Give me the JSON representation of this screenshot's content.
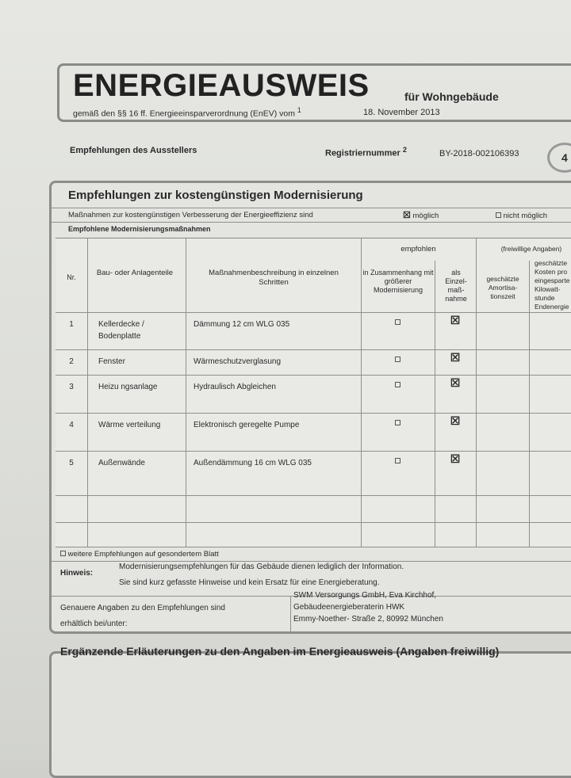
{
  "header": {
    "title": "ENERGIEAUSWEIS",
    "subtitle": "für Wohngebäude",
    "regulation": "gemäß den §§ 16 ff. Energieeinsparverordnung (EnEV) vom",
    "footnote1": "1",
    "regulation_date": "18. November 2013"
  },
  "meta": {
    "section": "Empfehlungen des Ausstellers",
    "reg_label": "Registriernummer",
    "footnote2": "2",
    "reg_number": "BY-2018-002106393",
    "page": "4"
  },
  "recommendations": {
    "title": "Empfehlungen zur kostengünstigen Modernisierung",
    "measures_text": "Maßnahmen zur kostengünstigen Verbesserung der Energieeffizienz sind",
    "possible": "möglich",
    "possible_checked": true,
    "not_possible": "nicht möglich",
    "not_possible_checked": false,
    "subheading": "Empfohlene Modernisierungsmaßnahmen",
    "columns": {
      "nr": "Nr.",
      "part": "Bau- oder Anlagenteile",
      "desc": "Maßnahmenbeschreibung in einzelnen Schritten",
      "recommended": "empfohlen",
      "combined": "in Zusammenhang mit größerer Modernisierung",
      "single": "als Einzel-maß-nahme",
      "optional": "(freiwillige Angaben)",
      "amort": "geschätzte Amortisa-tionszeit",
      "cost": "geschätzte Kosten pro eingesparte Kilowatt-stunde Endenergie"
    },
    "rows": [
      {
        "nr": "1",
        "part": "Kellerdecke / Bodenplatte",
        "desc": "Dämmung 12 cm WLG 035",
        "combined": false,
        "single": true
      },
      {
        "nr": "2",
        "part": "Fenster",
        "desc": "Wärmeschutzverglasung",
        "combined": false,
        "single": true
      },
      {
        "nr": "3",
        "part": "Heizu ngsanlage",
        "desc": "Hydraulisch Abgleichen",
        "combined": false,
        "single": true
      },
      {
        "nr": "4",
        "part": "Wärme verteilung",
        "desc": "Elektronisch geregelte Pumpe",
        "combined": false,
        "single": true
      },
      {
        "nr": "5",
        "part": "Außenwände",
        "desc": "Außendämmung 16 cm WLG 035",
        "combined": false,
        "single": true
      }
    ],
    "more": "weitere Empfehlungen auf gesondertem Blatt",
    "note_label": "Hinweis:",
    "note_line1": "Modernisierungsempfehlungen für das Gebäude dienen lediglich der Information.",
    "note_line2": "Sie sind kurz gefasste Hinweise und kein Ersatz für eine Energieberatung.",
    "contact_label1": "Genauere Angaben zu den Empfehlungen sind",
    "contact_label2": "erhältlich bei/unter:",
    "contact1": "SWM Versorgungs GmbH, Eva Kirchhof,",
    "contact2": "Gebäudeenergieberaterin HWK",
    "contact3": "Emmy-Noether- Straße 2, 80992 München"
  },
  "supplement": {
    "title": "Ergänzende Erläuterungen zu den Angaben im Energieausweis (Angaben freiwillig)"
  }
}
